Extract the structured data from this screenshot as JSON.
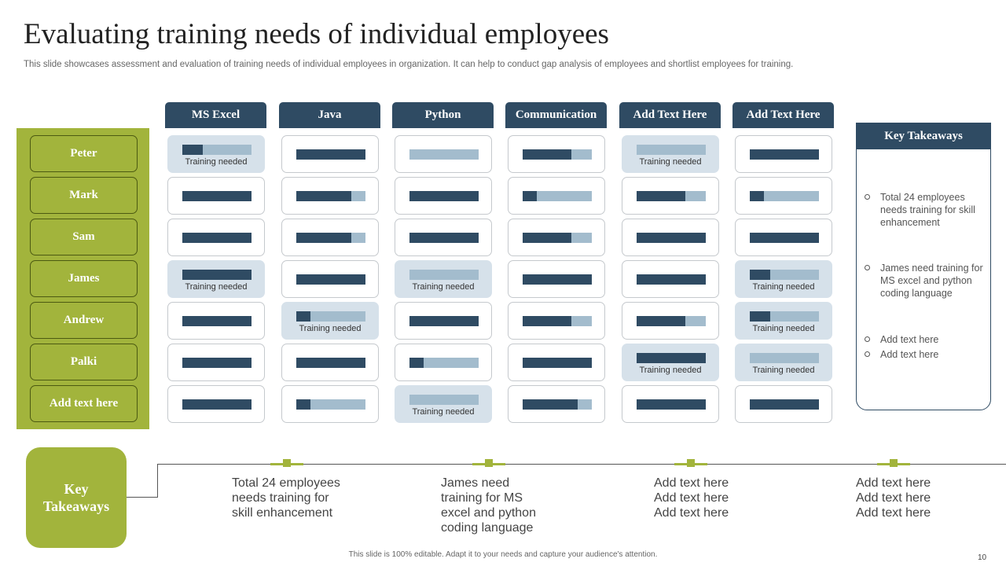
{
  "title": "Evaluating training needs of individual employees",
  "subtitle": "This slide showcases assessment and evaluation of training needs of individual employees in organization. It can help to conduct gap analysis of employees and shortlist employees for training.",
  "columns": [
    "MS Excel",
    "Java",
    "Python",
    "Communication",
    "Add Text Here",
    "Add Text Here"
  ],
  "employees": [
    "Peter",
    "Mark",
    "Sam",
    "James",
    "Andrew",
    "Palki",
    "Add text here"
  ],
  "note_label": "Training needed",
  "colors": {
    "accent_green": "#a2b43c",
    "navy": "#2f4b63",
    "light_blue": "#a3bccd",
    "highlight": "#d6e1ea"
  },
  "grid": [
    [
      {
        "level": 0.3,
        "training_needed": true
      },
      {
        "level": 1.0
      },
      {
        "level": 0.0
      },
      {
        "level": 0.7
      },
      {
        "level": 0.0,
        "training_needed": true
      },
      {
        "level": 1.0
      }
    ],
    [
      {
        "level": 1.0
      },
      {
        "level": 0.8
      },
      {
        "level": 1.0
      },
      {
        "level": 0.2
      },
      {
        "level": 0.7
      },
      {
        "level": 0.2
      }
    ],
    [
      {
        "level": 1.0
      },
      {
        "level": 0.8
      },
      {
        "level": 1.0
      },
      {
        "level": 0.7
      },
      {
        "level": 1.0
      },
      {
        "level": 1.0
      }
    ],
    [
      {
        "level": 1.0,
        "training_needed": true
      },
      {
        "level": 1.0
      },
      {
        "level": 0.0,
        "training_needed": true
      },
      {
        "level": 1.0
      },
      {
        "level": 1.0
      },
      {
        "level": 0.3,
        "training_needed": true
      }
    ],
    [
      {
        "level": 1.0
      },
      {
        "level": 0.2,
        "training_needed": true
      },
      {
        "level": 1.0
      },
      {
        "level": 0.7
      },
      {
        "level": 0.7
      },
      {
        "level": 0.3,
        "training_needed": true
      }
    ],
    [
      {
        "level": 1.0
      },
      {
        "level": 1.0
      },
      {
        "level": 0.2
      },
      {
        "level": 1.0
      },
      {
        "level": 1.0,
        "training_needed": true
      },
      {
        "level": 0.0,
        "training_needed": true
      }
    ],
    [
      {
        "level": 1.0
      },
      {
        "level": 0.2
      },
      {
        "level": 0.0,
        "training_needed": true
      },
      {
        "level": 0.8
      },
      {
        "level": 1.0
      },
      {
        "level": 1.0
      }
    ]
  ],
  "key_takeaways": {
    "header": "Key Takeaways",
    "items": [
      "Total 24 employees needs training for skill enhancement",
      "James need training for MS excel and python coding language",
      "Add text here",
      "Add text here"
    ]
  },
  "bottom": {
    "badge": "Key Takeaways",
    "items": [
      "Total 24 employees\nneeds training for\nskill enhancement",
      "James need\ntraining for MS\nexcel and python\ncoding language",
      "Add text here\nAdd text here\nAdd text here",
      "Add text here\nAdd text here\nAdd text here"
    ]
  },
  "footer": "This slide is 100% editable. Adapt it to your needs and capture your audience's attention.",
  "page_number": "10"
}
